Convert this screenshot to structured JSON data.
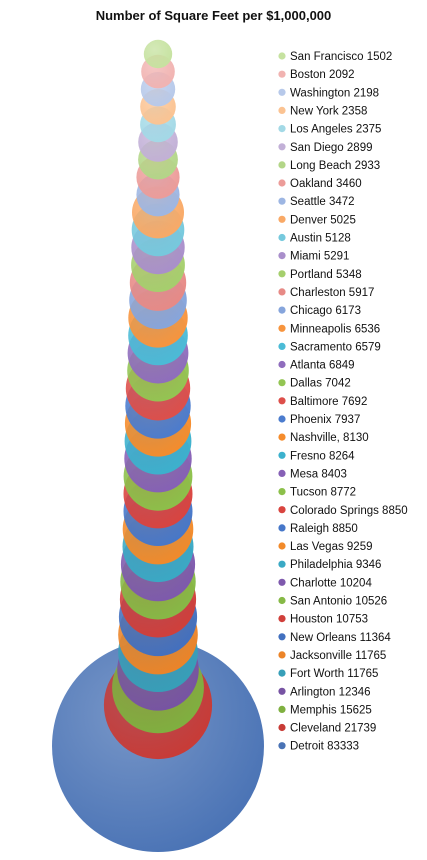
{
  "chart_data": {
    "type": "bubble",
    "title": "Number of Square Feet per $1,000,000",
    "legend_position": "right",
    "series": [
      {
        "label": "San Francisco 1502",
        "value": 1502,
        "color": "#c6e2a0"
      },
      {
        "label": "Boston 2092",
        "value": 2092,
        "color": "#f1b3b1"
      },
      {
        "label": "Washington 2198",
        "value": 2198,
        "color": "#b7c9ea"
      },
      {
        "label": "New York 2358",
        "value": 2358,
        "color": "#fbc392"
      },
      {
        "label": "Los Angeles 2375",
        "value": 2375,
        "color": "#a3d9e6"
      },
      {
        "label": "San Diego 2899",
        "value": 2899,
        "color": "#c2b0d7"
      },
      {
        "label": "Long Beach 2933",
        "value": 2933,
        "color": "#b3d688"
      },
      {
        "label": "Oakland 3460",
        "value": 3460,
        "color": "#ec9c99"
      },
      {
        "label": "Seattle 3472",
        "value": 3472,
        "color": "#9db6e3"
      },
      {
        "label": "Denver 5025",
        "value": 5025,
        "color": "#f9a966"
      },
      {
        "label": "Austin 5128",
        "value": 5128,
        "color": "#76c9dd"
      },
      {
        "label": "Miami 5291",
        "value": 5291,
        "color": "#a98fcb"
      },
      {
        "label": "Portland 5348",
        "value": 5348,
        "color": "#a5cf6d"
      },
      {
        "label": "Charleston 5917",
        "value": 5917,
        "color": "#e78a86"
      },
      {
        "label": "Chicago 6173",
        "value": 6173,
        "color": "#86a5dc"
      },
      {
        "label": "Minneapolis 6536",
        "value": 6536,
        "color": "#f7943d"
      },
      {
        "label": "Sacramento 6579",
        "value": 6579,
        "color": "#4bbbd6"
      },
      {
        "label": "Atlanta 6849",
        "value": 6849,
        "color": "#8f6dbd"
      },
      {
        "label": "Dallas 7042",
        "value": 7042,
        "color": "#93c553"
      },
      {
        "label": "Baltimore 7692",
        "value": 7692,
        "color": "#dd4f4a"
      },
      {
        "label": "Phoenix 7937",
        "value": 7937,
        "color": "#4b7cce"
      },
      {
        "label": "Nashville, 8130",
        "value": 8130,
        "color": "#f58c2c"
      },
      {
        "label": "Fresno 8264",
        "value": 8264,
        "color": "#3cb1cd"
      },
      {
        "label": "Mesa 8403",
        "value": 8403,
        "color": "#8660b6"
      },
      {
        "label": "Tucson 8772",
        "value": 8772,
        "color": "#8cc04a"
      },
      {
        "label": "Colorado Springs 8850",
        "value": 8850,
        "color": "#d9443f"
      },
      {
        "label": "Raleigh 8850",
        "value": 8850,
        "color": "#4677c9"
      },
      {
        "label": "Las Vegas 9259",
        "value": 9259,
        "color": "#f28a2a"
      },
      {
        "label": "Philadelphia 9346",
        "value": 9346,
        "color": "#3aa9c4"
      },
      {
        "label": "Charlotte 10204",
        "value": 10204,
        "color": "#7e59ad"
      },
      {
        "label": "San Antonio 10526",
        "value": 10526,
        "color": "#86b946"
      },
      {
        "label": "Houston 10753",
        "value": 10753,
        "color": "#d03f3a"
      },
      {
        "label": "New Orleans 11364",
        "value": 11364,
        "color": "#4270bf"
      },
      {
        "label": "Jacksonville 11765",
        "value": 11765,
        "color": "#ec8428"
      },
      {
        "label": "Fort Worth 11765",
        "value": 11765,
        "color": "#379fb8"
      },
      {
        "label": "Arlington 12346",
        "value": 12346,
        "color": "#7753a3"
      },
      {
        "label": "Memphis 15625",
        "value": 15625,
        "color": "#7fb040"
      },
      {
        "label": "Cleveland 21739",
        "value": 21739,
        "color": "#c83b36"
      },
      {
        "label": "Detroit 83333",
        "value": 83333,
        "color": "#4a73b5"
      }
    ]
  }
}
